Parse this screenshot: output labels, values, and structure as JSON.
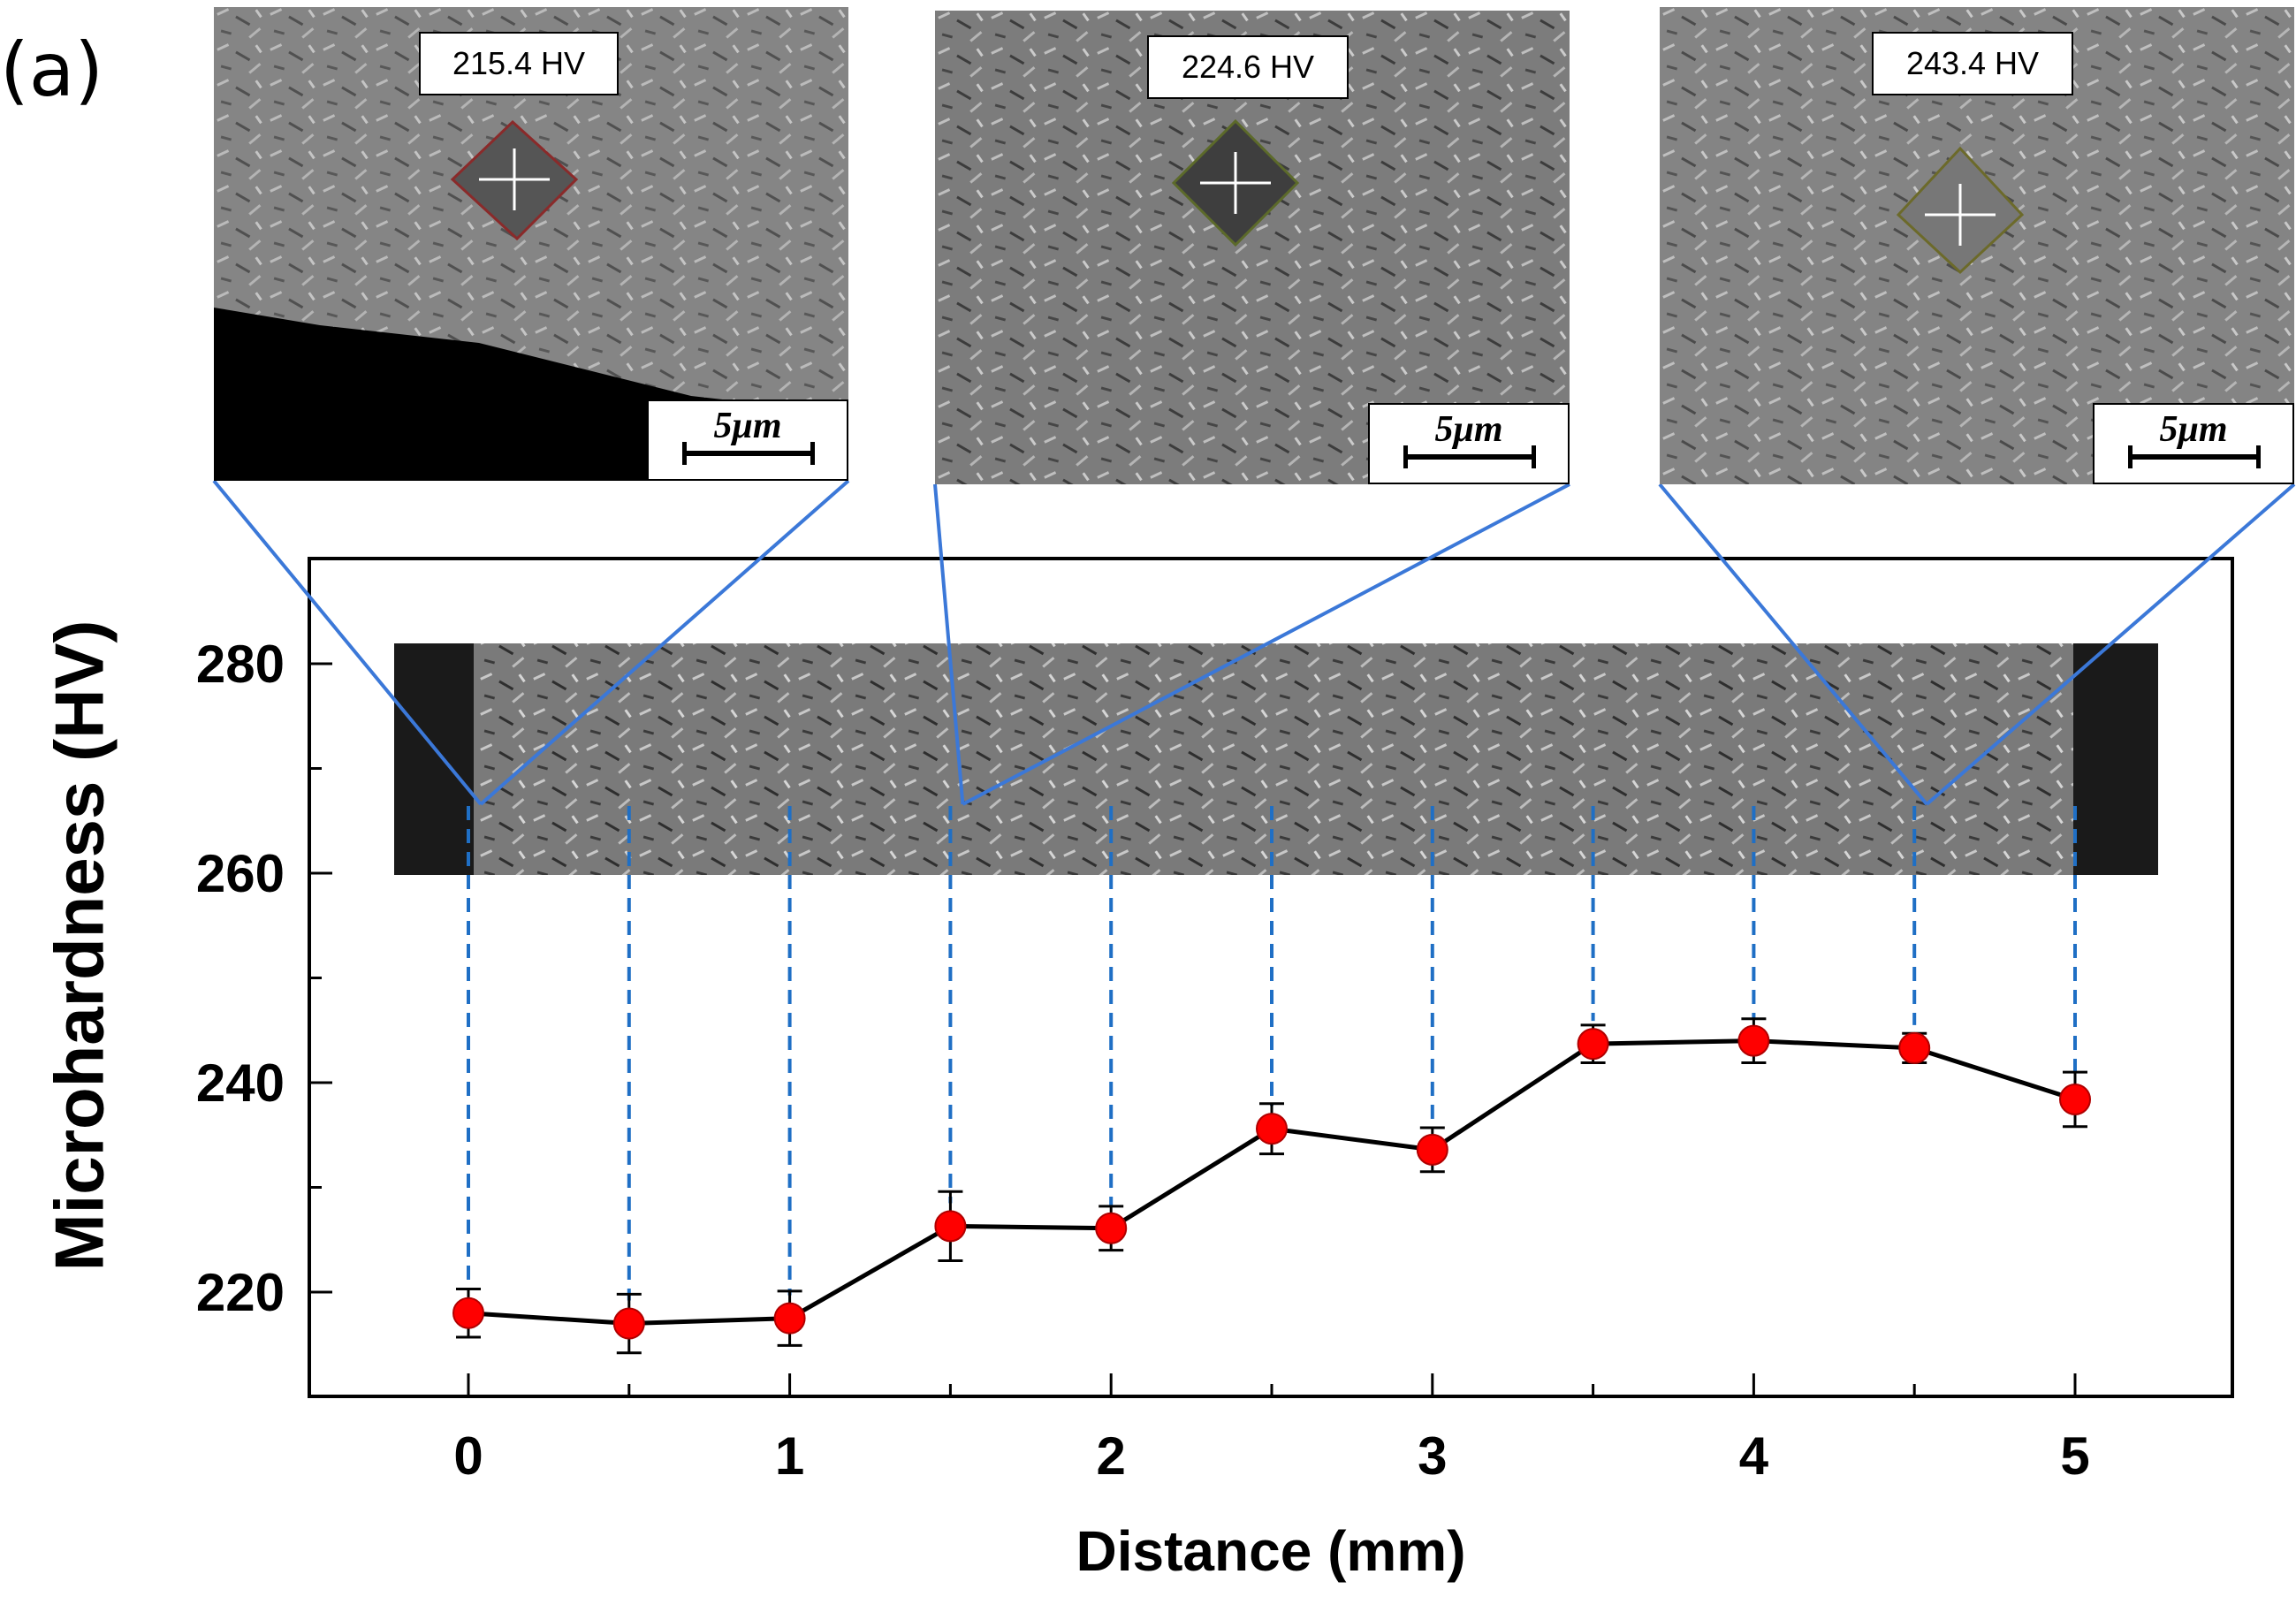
{
  "panel_label": "(a)",
  "insets": [
    {
      "hardness_label": "215.4 HV",
      "scale_label": "5μm",
      "distance_mm": 0
    },
    {
      "hardness_label": "224.6 HV",
      "scale_label": "5μm",
      "distance_mm": 1.5
    },
    {
      "hardness_label": "243.4 HV",
      "scale_label": "5μm",
      "distance_mm": 4.5
    }
  ],
  "chart_data": {
    "type": "line",
    "xlabel": "Distance (mm)",
    "ylabel": "Microhardness (HV)",
    "xlim": [
      -0.5,
      5.5
    ],
    "ylim": [
      210,
      290
    ],
    "xticks": [
      0,
      1,
      2,
      3,
      4,
      5
    ],
    "yticks": [
      220,
      240,
      260,
      280
    ],
    "grid": false,
    "series": [
      {
        "x": [
          0,
          0.5,
          1,
          1.5,
          2,
          2.5,
          3,
          3.5,
          4,
          4.5,
          5
        ],
        "values": [
          218.0,
          217.0,
          217.5,
          226.3,
          226.1,
          235.6,
          233.6,
          243.7,
          244.0,
          243.3,
          238.4
        ],
        "errors": [
          2.3,
          2.8,
          2.6,
          3.3,
          2.1,
          2.4,
          2.1,
          1.8,
          2.1,
          1.4,
          2.6
        ],
        "marker_color": "#ff0000",
        "line_color": "#000000"
      }
    ]
  },
  "colors": {
    "connector": "#3b78d8",
    "drop_line": "#1f6fc5"
  }
}
